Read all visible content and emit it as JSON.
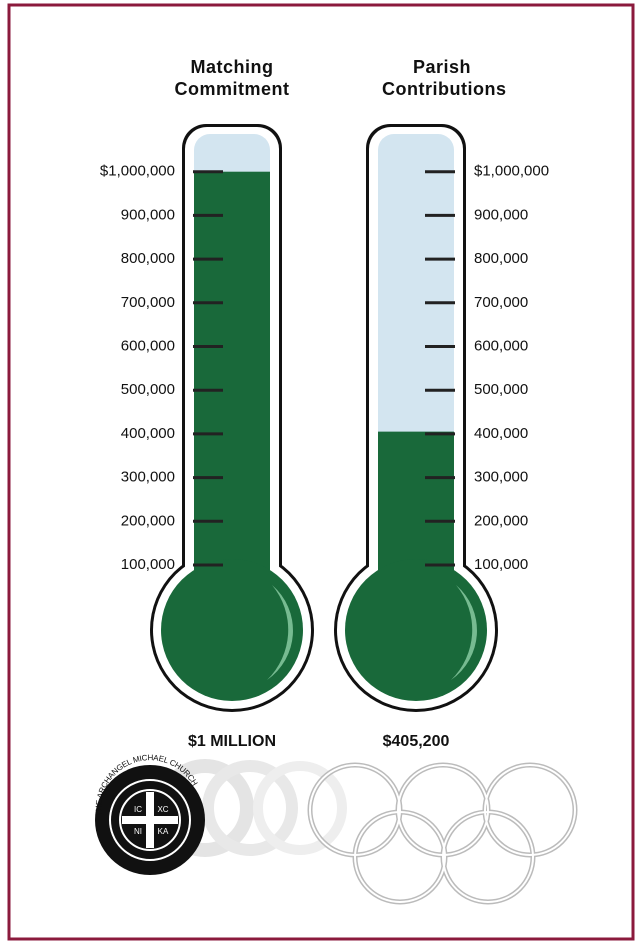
{
  "chart_data": {
    "type": "thermometer",
    "series": [
      {
        "name": "Matching Commitment",
        "color": "#19693a",
        "values": [
          1000000
        ],
        "value_labels": [
          "$1 MILLION"
        ]
      },
      {
        "name": "Parish Contributions",
        "color": "#19693a",
        "values": [
          405200
        ],
        "value_labels": [
          "$405,200"
        ]
      }
    ],
    "empty_color": "#d3e5f0",
    "ylim": [
      0,
      1100000
    ],
    "yticks": [
      {
        "value": 100000,
        "label": "100,000"
      },
      {
        "value": 200000,
        "label": "200,000"
      },
      {
        "value": 300000,
        "label": "300,000"
      },
      {
        "value": 400000,
        "label": "400,000"
      },
      {
        "value": 500000,
        "label": "500,000"
      },
      {
        "value": 600000,
        "label": "600,000"
      },
      {
        "value": 700000,
        "label": "700,000"
      },
      {
        "value": 800000,
        "label": "800,000"
      },
      {
        "value": 900000,
        "label": "900,000"
      },
      {
        "value": 1000000,
        "label": "$1,000,000"
      }
    ]
  },
  "logo": {
    "name": "THE ARCHANGEL MICHAEL CHURCH",
    "monogram": [
      "IC",
      "XC",
      "NI",
      "KA"
    ]
  }
}
